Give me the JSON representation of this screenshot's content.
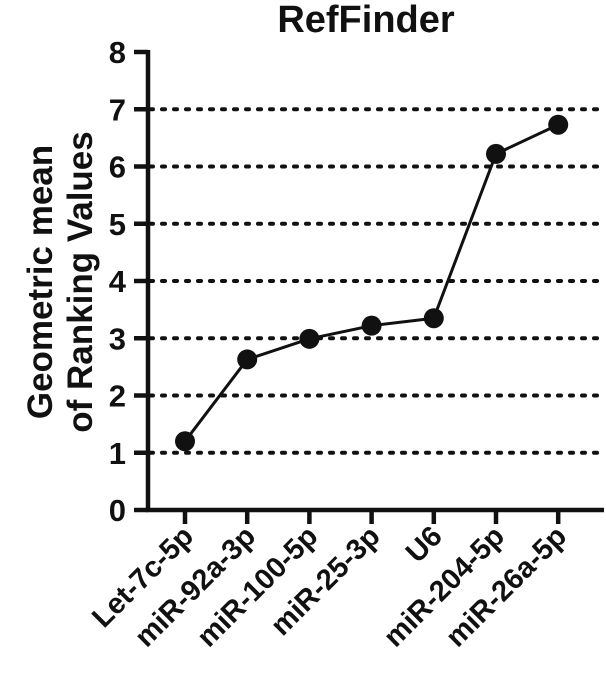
{
  "chart_data": {
    "type": "line",
    "title": "RefFinder",
    "ylabel_lines": [
      "Geometric mean",
      "of Ranking Values"
    ],
    "xlabel": "",
    "ylim": [
      0,
      8
    ],
    "yticks": [
      0,
      1,
      2,
      3,
      4,
      5,
      6,
      7,
      8
    ],
    "grid": "horizontal dotted at 1-7",
    "categories": [
      "Let-7c-5p",
      "miR-92a-3p",
      "miR-100-5p",
      "miR-25-3p",
      "U6",
      "miR-204-5p",
      "miR-26a-5p"
    ],
    "series": [
      {
        "values": [
          1.2,
          2.63,
          2.99,
          3.22,
          3.35,
          6.22,
          6.73
        ]
      }
    ],
    "colors": {
      "line": "#111111",
      "marker": "#111111",
      "grid": "#111111"
    }
  }
}
